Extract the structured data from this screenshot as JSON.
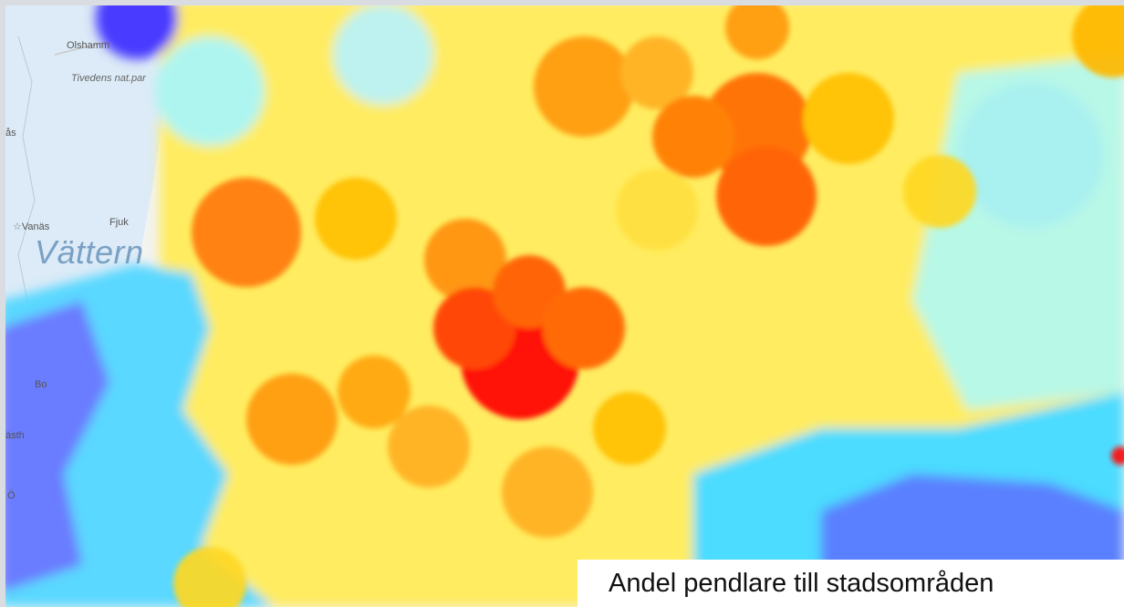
{
  "map": {
    "basemap_colors": {
      "land": "#f3f3f0",
      "water": "#dcebf7",
      "road": "#c9c9c9"
    },
    "heat_scale": [
      "#3a2bff",
      "#35e4ff",
      "#c9ffe0",
      "#fbff80",
      "#ffd61f",
      "#ff9a08",
      "#ff5a00",
      "#ff0000"
    ],
    "place_labels": {
      "olshammar": "Olshamm",
      "tivedens": "Tivedens nat.par",
      "vanas": "Vanäs",
      "fjuk": "Fjuk",
      "lake": "Vättern",
      "bo": "Bo",
      "as": "ås",
      "asth": "ästh",
      "o": "Ö"
    }
  },
  "caption": {
    "text": "Andel pendlare till stadsområden"
  }
}
